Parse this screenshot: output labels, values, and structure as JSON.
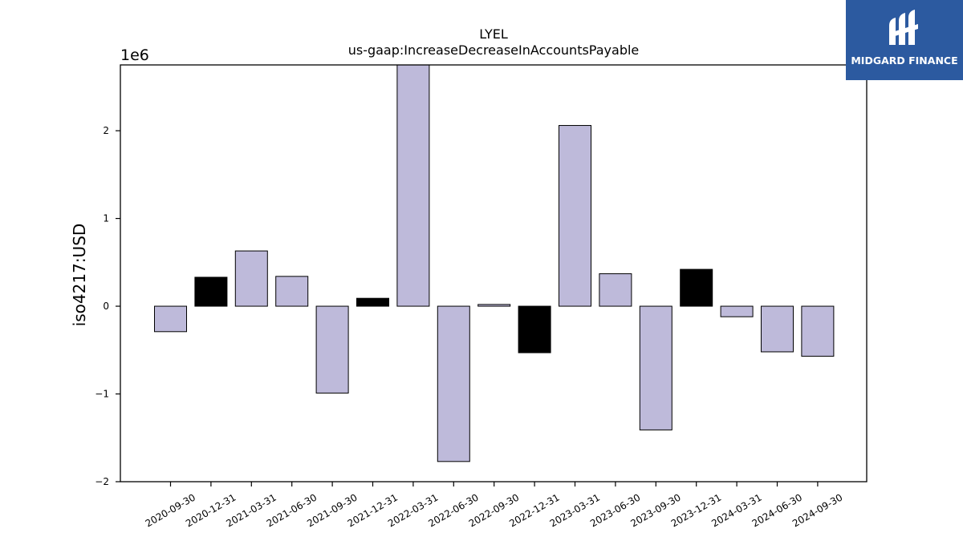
{
  "chart_data": {
    "type": "bar",
    "title": "LYEL",
    "subtitle": "us-gaap:IncreaseDecreaseInAccountsPayable",
    "xlabel": "",
    "ylabel": "iso4217:USD",
    "y_multiplier_label": "1e6",
    "ylim": [
      -2000000,
      2750000
    ],
    "yticks": [
      -2,
      -1,
      0,
      1,
      2
    ],
    "ytick_labels": [
      "−2",
      "−1",
      "0",
      "1",
      "2"
    ],
    "grid": false,
    "categories": [
      "2020-09-30",
      "2020-12-31",
      "2021-03-31",
      "2021-06-30",
      "2021-09-30",
      "2021-12-31",
      "2022-03-31",
      "2022-06-30",
      "2022-09-30",
      "2022-12-31",
      "2023-03-31",
      "2023-06-30",
      "2023-09-30",
      "2023-12-31",
      "2024-03-31",
      "2024-06-30",
      "2024-09-30"
    ],
    "values": [
      -290000,
      330000,
      630000,
      340000,
      -990000,
      90000,
      2750000,
      -1770000,
      20000,
      -530000,
      2060000,
      370000,
      -1410000,
      420000,
      -120000,
      -520000,
      -570000
    ],
    "bar_colors": [
      "#bebada",
      "#000000",
      "#bebada",
      "#bebada",
      "#bebada",
      "#000000",
      "#bebada",
      "#bebada",
      "#bebada",
      "#000000",
      "#bebada",
      "#bebada",
      "#bebada",
      "#000000",
      "#bebada",
      "#bebada",
      "#bebada"
    ]
  },
  "logo": {
    "text": "MIDGARD FINANCE",
    "background": "#2c5aa0"
  }
}
